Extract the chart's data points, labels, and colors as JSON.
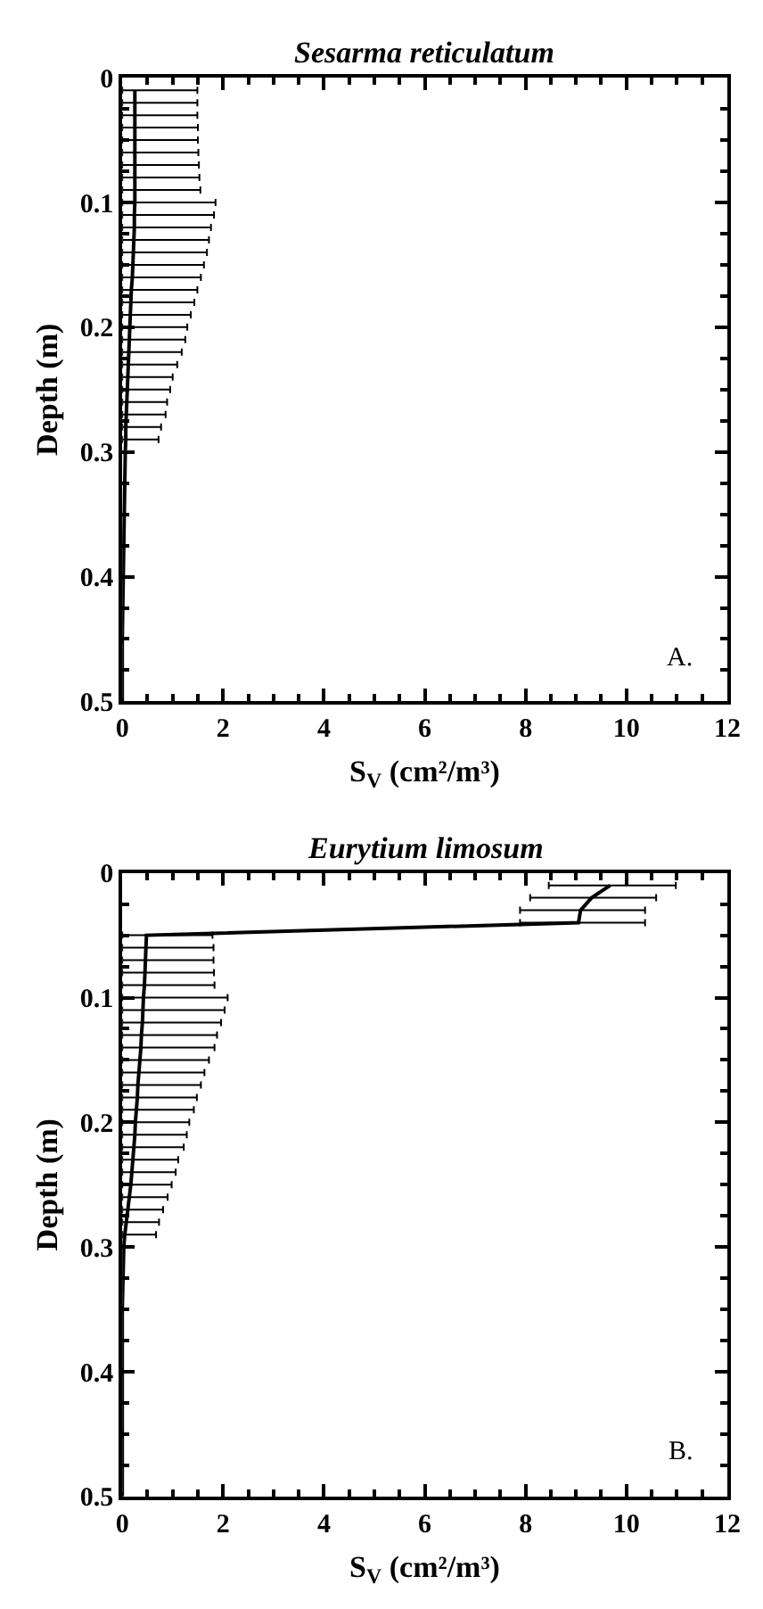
{
  "chart_data": [
    {
      "type": "line",
      "title": "Sesarma reticulatum",
      "xlabel": "S$_{V}$ (cm²/m³)",
      "ylabel": "Depth (m)",
      "annotations": [
        "A."
      ],
      "xlim": [
        0,
        12
      ],
      "xticks": [
        0,
        2,
        4,
        6,
        8,
        10,
        12
      ],
      "ylim": [
        0.5,
        0
      ],
      "yticks": [
        0,
        0.1,
        0.2,
        0.3,
        0.4,
        0.5
      ],
      "marker": "none",
      "line_style": "solid",
      "series": [
        {
          "color": "#000000",
          "x": [
            0.25,
            0.25,
            0.25,
            0.25,
            0.25,
            0.25,
            0.25,
            0.25,
            0.25,
            0.25,
            0.24,
            0.24,
            0.23,
            0.22,
            0.21,
            0.2,
            0.18,
            0.17,
            0.16,
            0.15,
            0.14,
            0.13,
            0.12,
            0.11,
            0.1,
            0.09,
            0.08,
            0.07,
            0.07,
            0.06,
            0.04,
            0.02,
            0,
            0
          ],
          "values": [
            0.01,
            0.02,
            0.03,
            0.04,
            0.05,
            0.06,
            0.07,
            0.08,
            0.09,
            0.1,
            0.11,
            0.12,
            0.13,
            0.14,
            0.15,
            0.16,
            0.17,
            0.18,
            0.19,
            0.2,
            0.21,
            0.22,
            0.23,
            0.24,
            0.25,
            0.26,
            0.27,
            0.28,
            0.29,
            0.3,
            0.35,
            0.4,
            0.45,
            0.5
          ],
          "xerrors": [
            [
              0,
              1.49
            ],
            [
              0,
              1.49
            ],
            [
              0,
              1.49
            ],
            [
              0,
              1.5
            ],
            [
              0,
              1.5
            ],
            [
              0,
              1.51
            ],
            [
              0,
              1.52
            ],
            [
              0,
              1.53
            ],
            [
              0,
              1.55
            ],
            [
              0,
              1.85
            ],
            [
              0,
              1.82
            ],
            [
              0,
              1.76
            ],
            [
              0,
              1.72
            ],
            [
              0,
              1.68
            ],
            [
              0,
              1.62
            ],
            [
              0,
              1.56
            ],
            [
              0,
              1.49
            ],
            [
              0,
              1.43
            ],
            [
              0,
              1.36
            ],
            [
              0,
              1.29
            ],
            [
              0,
              1.25
            ],
            [
              0,
              1.18
            ],
            [
              0,
              1.09
            ],
            [
              0,
              1.0
            ],
            [
              0,
              0.95
            ],
            [
              0,
              0.89
            ],
            [
              0,
              0.86
            ],
            [
              0,
              0.77
            ],
            [
              0,
              0.72
            ],
            null,
            null,
            null,
            null,
            null
          ]
        }
      ]
    },
    {
      "type": "line",
      "title": "Eurytium limosum",
      "xlabel": "S$_{V}$ (cm²/m³)",
      "ylabel": "Depth (m)",
      "annotations": [
        "B."
      ],
      "xlim": [
        0,
        12
      ],
      "xticks": [
        0,
        2,
        4,
        6,
        8,
        10,
        12
      ],
      "ylim": [
        0.5,
        0
      ],
      "yticks": [
        0,
        0.1,
        0.2,
        0.3,
        0.4,
        0.5
      ],
      "marker": "none",
      "line_style": "solid",
      "series": [
        {
          "color": "#000000",
          "x": [
            9.68,
            9.31,
            9.09,
            9.05,
            0.48,
            0.47,
            0.46,
            0.45,
            0.44,
            0.42,
            0.41,
            0.4,
            0.38,
            0.37,
            0.35,
            0.33,
            0.31,
            0.3,
            0.28,
            0.26,
            0.25,
            0.23,
            0.21,
            0.19,
            0.17,
            0.14,
            0.11,
            0.08,
            0.05,
            0.03,
            0,
            0,
            0,
            0
          ],
          "values": [
            0.01,
            0.02,
            0.03,
            0.04,
            0.05,
            0.06,
            0.07,
            0.08,
            0.09,
            0.1,
            0.11,
            0.12,
            0.13,
            0.14,
            0.15,
            0.16,
            0.17,
            0.18,
            0.19,
            0.2,
            0.21,
            0.22,
            0.23,
            0.24,
            0.25,
            0.26,
            0.27,
            0.28,
            0.29,
            0.3,
            0.35,
            0.4,
            0.45,
            0.5
          ],
          "xerrors": [
            [
              8.46,
              10.98
            ],
            [
              8.09,
              10.59
            ],
            [
              7.89,
              10.37
            ],
            [
              7.89,
              10.37
            ],
            [
              0,
              1.79
            ],
            [
              0,
              1.81
            ],
            [
              0,
              1.81
            ],
            [
              0,
              1.82
            ],
            [
              0,
              1.83
            ],
            [
              0,
              2.09
            ],
            [
              0,
              2.03
            ],
            [
              0,
              1.96
            ],
            [
              0,
              1.88
            ],
            [
              0,
              1.83
            ],
            [
              0,
              1.72
            ],
            [
              0,
              1.63
            ],
            [
              0,
              1.56
            ],
            [
              0,
              1.48
            ],
            [
              0,
              1.42
            ],
            [
              0,
              1.33
            ],
            [
              0,
              1.28
            ],
            [
              0,
              1.22
            ],
            [
              0,
              1.11
            ],
            [
              0,
              1.06
            ],
            [
              0,
              0.98
            ],
            [
              0,
              0.9
            ],
            [
              0,
              0.81
            ],
            [
              0,
              0.73
            ],
            [
              0,
              0.67
            ],
            null,
            null,
            null,
            null,
            null
          ]
        }
      ]
    }
  ]
}
